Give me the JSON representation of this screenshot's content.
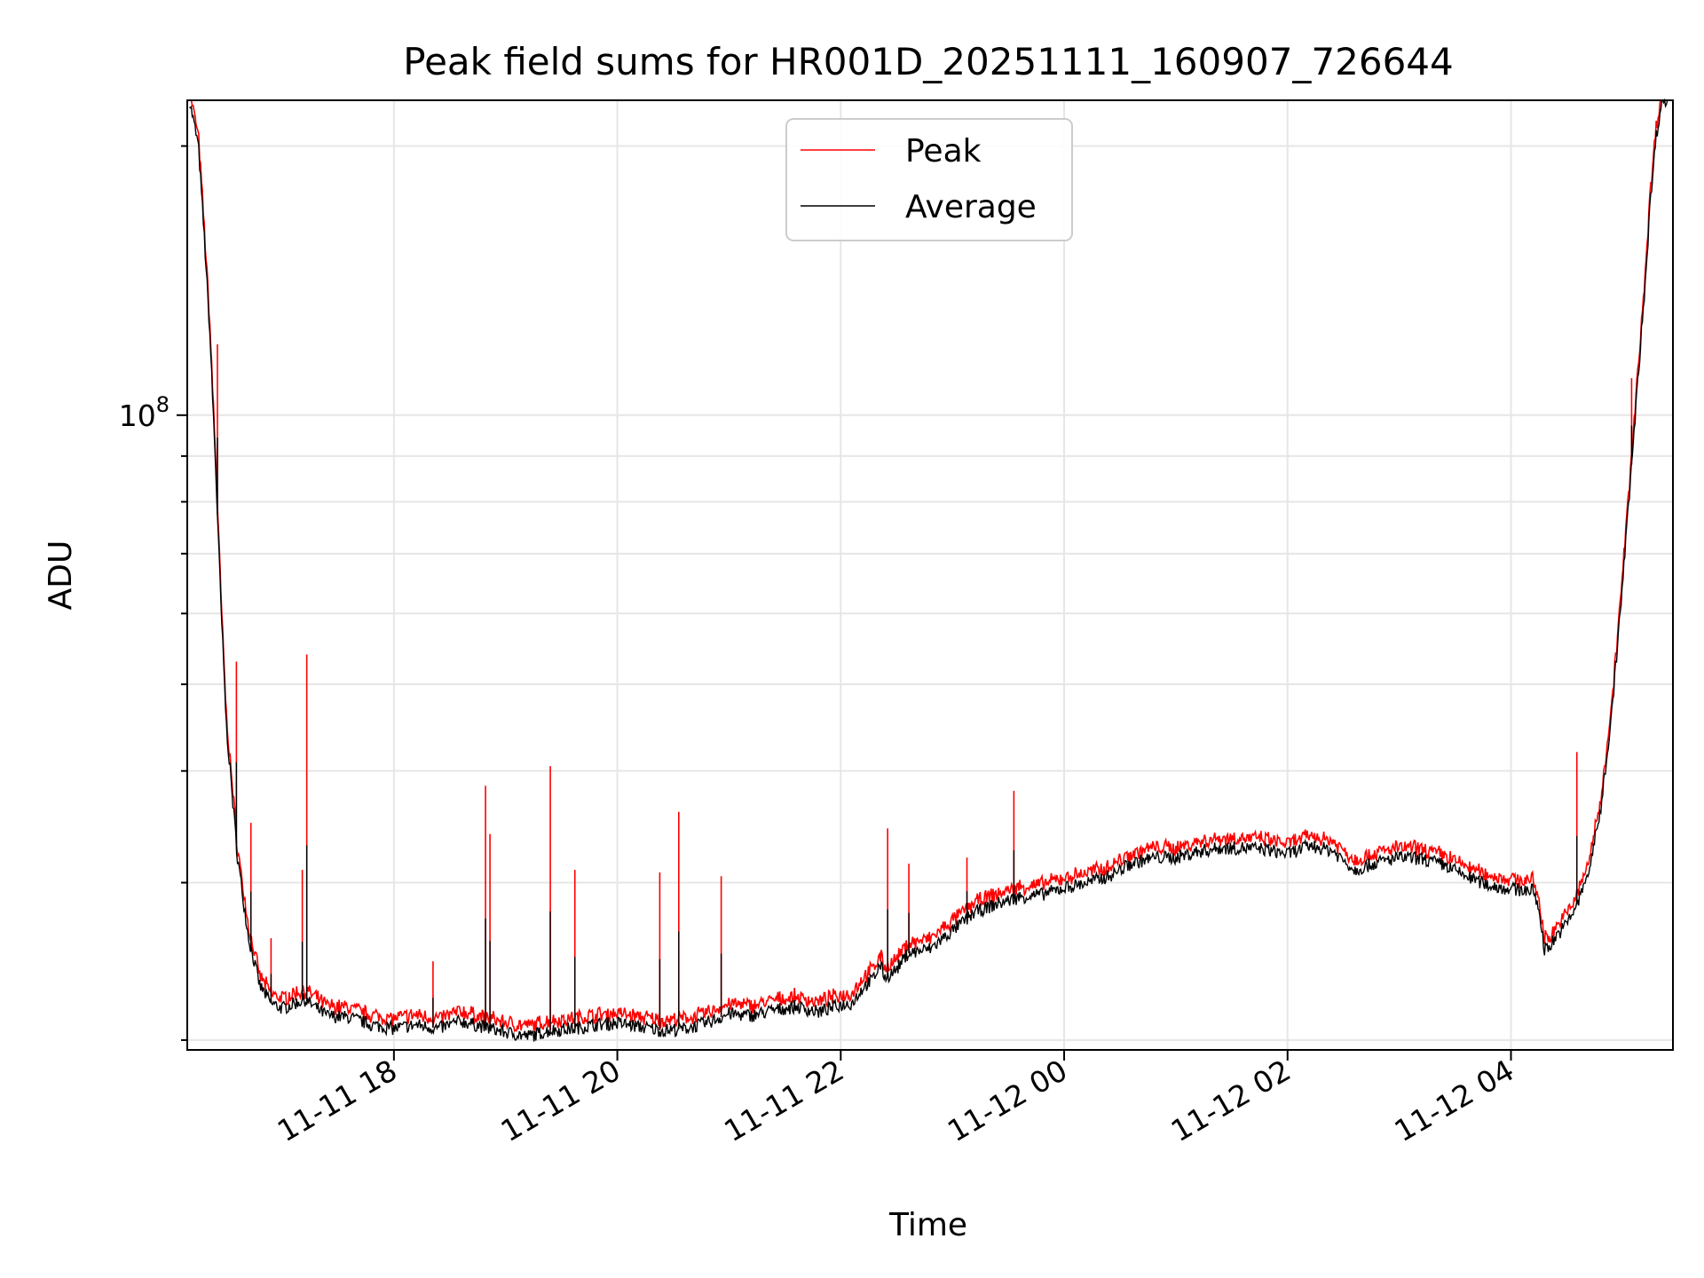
{
  "chart_data": {
    "type": "line",
    "title": "Peak field sums for HR001D_20251111_160907_726644",
    "xlabel": "Time",
    "ylabel": "ADU",
    "y_scale": "log",
    "x_range_hours": [
      16.15,
      29.45
    ],
    "ylim": [
      19500000,
      225000000
    ],
    "x_ticks": [
      {
        "label": "11-11 18",
        "hour": 18
      },
      {
        "label": "11-11 20",
        "hour": 20
      },
      {
        "label": "11-11 22",
        "hour": 22
      },
      {
        "label": "11-12 00",
        "hour": 24
      },
      {
        "label": "11-12 02",
        "hour": 26
      },
      {
        "label": "11-12 04",
        "hour": 28
      }
    ],
    "y_major_tick": {
      "base": "10",
      "exponent": "8",
      "value": 100000000
    },
    "y_minor_ticks": [
      20000000,
      30000000,
      40000000,
      50000000,
      60000000,
      70000000,
      80000000,
      90000000,
      200000000
    ],
    "grid": true,
    "legend": {
      "position": "upper-center",
      "entries": [
        {
          "name": "Peak",
          "color": "#ff0000"
        },
        {
          "name": "Average",
          "color": "#000000"
        }
      ]
    },
    "series": [
      {
        "name": "Average",
        "color": "#000000",
        "x_hours": [
          16.17,
          16.25,
          16.3,
          16.35,
          16.4,
          16.45,
          16.5,
          16.6,
          16.7,
          16.8,
          16.9,
          17.0,
          17.2,
          17.4,
          17.6,
          17.8,
          18.0,
          18.2,
          18.4,
          18.6,
          18.8,
          19.0,
          19.2,
          19.4,
          19.6,
          19.8,
          20.0,
          20.2,
          20.4,
          20.6,
          20.8,
          21.0,
          21.2,
          21.4,
          21.6,
          21.8,
          22.0,
          22.1,
          22.2,
          22.3,
          22.35,
          22.4,
          22.5,
          22.6,
          22.8,
          23.0,
          23.2,
          23.4,
          23.6,
          23.8,
          24.0,
          24.2,
          24.4,
          24.6,
          24.8,
          25.0,
          25.2,
          25.4,
          25.6,
          25.8,
          26.0,
          26.2,
          26.4,
          26.6,
          26.8,
          27.0,
          27.2,
          27.4,
          27.6,
          27.8,
          28.0,
          28.2,
          28.25,
          28.3,
          28.35,
          28.4,
          28.5,
          28.6,
          28.7,
          28.8,
          28.9,
          29.0,
          29.1,
          29.2,
          29.25,
          29.3,
          29.35,
          29.4
        ],
        "values": [
          225000000,
          200000000,
          160000000,
          125000000,
          90000000,
          62000000,
          45000000,
          32000000,
          26000000,
          23000000,
          22000000,
          21700000,
          22200000,
          21300000,
          21200000,
          20800000,
          20600000,
          20800000,
          20600000,
          21000000,
          20700000,
          20400000,
          20200000,
          20500000,
          20600000,
          20800000,
          20900000,
          20700000,
          20500000,
          20600000,
          20900000,
          21400000,
          21300000,
          21600000,
          21800000,
          21500000,
          21900000,
          22000000,
          22900000,
          23500000,
          24300000,
          23500000,
          24000000,
          25000000,
          25300000,
          26500000,
          27800000,
          28400000,
          28900000,
          29100000,
          29600000,
          30000000,
          30500000,
          31500000,
          32000000,
          32000000,
          32500000,
          32800000,
          32800000,
          32700000,
          32300000,
          33000000,
          32600000,
          31000000,
          31600000,
          32000000,
          31900000,
          31400000,
          30500000,
          29800000,
          29500000,
          29400000,
          28000000,
          25300000,
          25500000,
          26100000,
          27000000,
          28500000,
          31000000,
          36000000,
          46000000,
          65000000,
          95000000,
          140000000,
          175000000,
          205000000,
          225000000,
          225000000
        ]
      },
      {
        "name": "Peak",
        "color": "#ff0000",
        "offset_factor": 1.02,
        "spikes": [
          {
            "hour": 16.42,
            "value": 120000000
          },
          {
            "hour": 16.59,
            "value": 53000000
          },
          {
            "hour": 16.72,
            "value": 35000000
          },
          {
            "hour": 16.9,
            "value": 26000000
          },
          {
            "hour": 17.18,
            "value": 31000000
          },
          {
            "hour": 17.22,
            "value": 54000000
          },
          {
            "hour": 18.35,
            "value": 24500000
          },
          {
            "hour": 18.82,
            "value": 38500000
          },
          {
            "hour": 18.86,
            "value": 34000000
          },
          {
            "hour": 19.4,
            "value": 40500000
          },
          {
            "hour": 19.62,
            "value": 31000000
          },
          {
            "hour": 20.38,
            "value": 30800000
          },
          {
            "hour": 20.55,
            "value": 36000000
          },
          {
            "hour": 20.93,
            "value": 30500000
          },
          {
            "hour": 22.42,
            "value": 34500000
          },
          {
            "hour": 22.61,
            "value": 31500000
          },
          {
            "hour": 23.13,
            "value": 32000000
          },
          {
            "hour": 23.55,
            "value": 38000000
          },
          {
            "hour": 28.59,
            "value": 42000000
          },
          {
            "hour": 29.08,
            "value": 110000000
          }
        ]
      }
    ]
  }
}
